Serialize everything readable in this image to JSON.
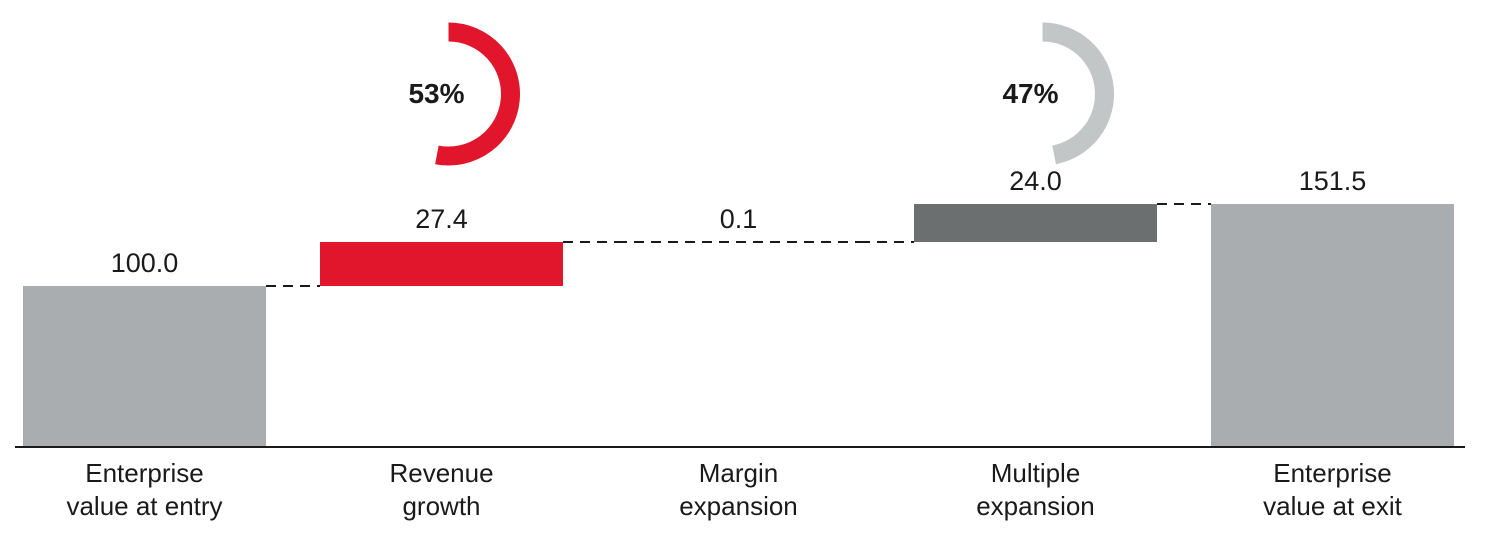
{
  "chart_data": {
    "type": "bar",
    "subtype": "waterfall",
    "title": "",
    "categories": [
      "Enterprise value at entry",
      "Revenue growth",
      "Margin expansion",
      "Multiple expansion",
      "Enterprise value at exit"
    ],
    "category_lines": [
      [
        "Enterprise",
        "value at entry"
      ],
      [
        "Revenue",
        "growth"
      ],
      [
        "Margin",
        "expansion"
      ],
      [
        "Multiple",
        "expansion"
      ],
      [
        "Enterprise",
        "value at exit"
      ]
    ],
    "values": [
      100.0,
      27.4,
      0.1,
      24.0,
      151.5
    ],
    "value_labels": [
      "100.0",
      "27.4",
      "0.1",
      "24.0",
      "151.5"
    ],
    "bar_roles": [
      "total",
      "increase",
      "increase",
      "increase",
      "total"
    ],
    "bar_colors": [
      "#AAADAF",
      "#E1162C",
      "#E1162C",
      "#6C6F70",
      "#AAADAF"
    ],
    "connector_style": "dashed",
    "grid": false,
    "axes_visible": {
      "x": true,
      "y": false
    },
    "ylim": [
      0,
      160
    ],
    "donut_annotations": [
      {
        "label": "53%",
        "percent": 53,
        "color": "#E1162C",
        "category_index": 1
      },
      {
        "label": "47%",
        "percent": 47,
        "color": "#C3C6C6",
        "category_index": 3
      }
    ],
    "colors": {
      "baseline": "#1A1A1A",
      "text": "#1A1A1A",
      "background": "#FFFFFF"
    }
  }
}
